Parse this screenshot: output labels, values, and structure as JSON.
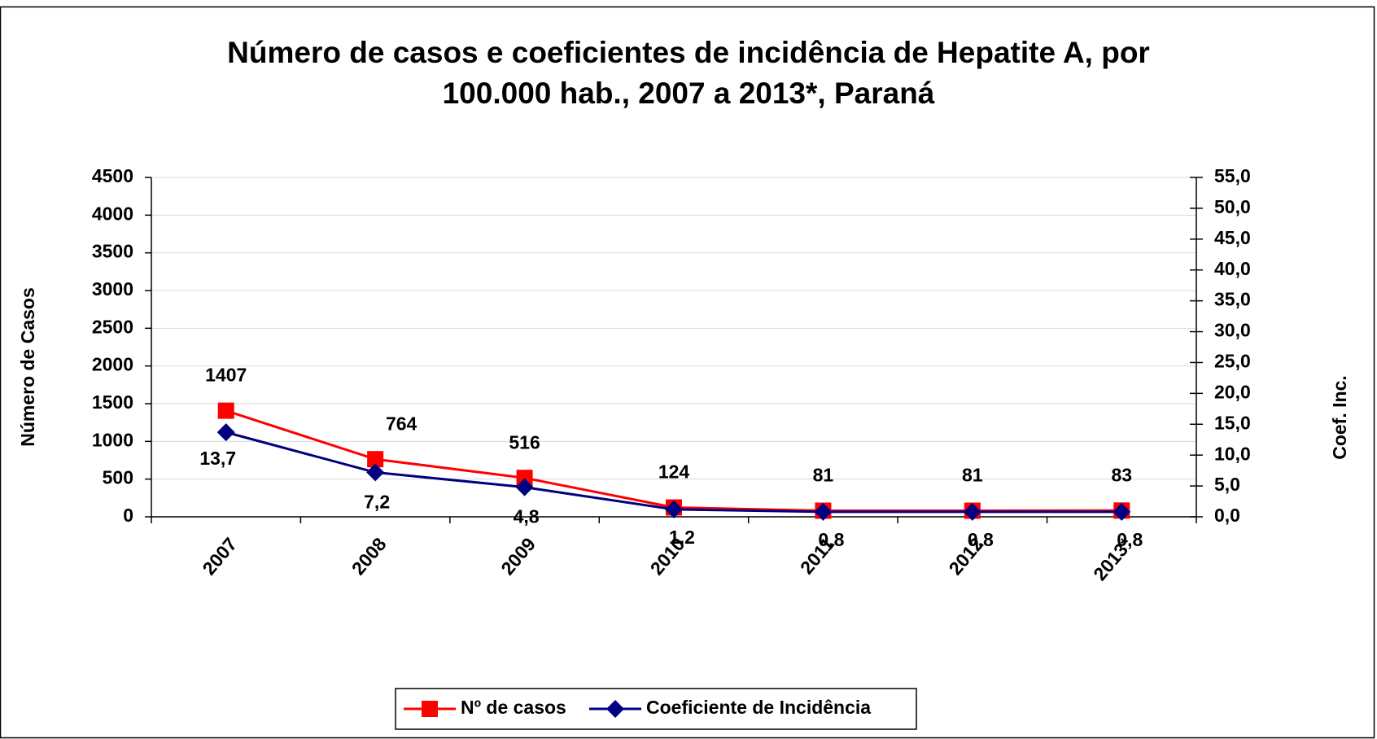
{
  "chart_data": {
    "type": "line",
    "title": "Número de casos e coeficientes de incidência de Hepatite A, por",
    "subtitle": "100.000 hab., 2007 a 2013*, Paraná",
    "ylabel": "Número de Casos",
    "y2label": "Coef. Inc.",
    "categories": [
      "2007",
      "2008",
      "2009",
      "2010",
      "2011",
      "2012",
      "2013*"
    ],
    "series": [
      {
        "name": "Nº de casos",
        "color": "#ff0000",
        "marker": "square",
        "values": [
          1407,
          764,
          516,
          124,
          81,
          81,
          83
        ]
      },
      {
        "name": "Coeficiente de Incidência",
        "color": "#000080",
        "marker": "diamond",
        "axis": "y2",
        "values": [
          13.7,
          7.2,
          4.8,
          1.2,
          0.8,
          0.8,
          0.8
        ],
        "value_labels": [
          "13,7",
          "7,2",
          "4,8",
          "1,2",
          "0,8",
          "0,8",
          "0,8"
        ]
      }
    ],
    "ylim": [
      0,
      4500
    ],
    "yticks": [
      0,
      500,
      1000,
      1500,
      2000,
      2500,
      3000,
      3500,
      4000,
      4500
    ],
    "y2lim": [
      0,
      55
    ],
    "y2ticks": [
      {
        "value": 0,
        "label": "0,0"
      },
      {
        "value": 5,
        "label": "5,0"
      },
      {
        "value": 10,
        "label": "10,0"
      },
      {
        "value": 15,
        "label": "15,0"
      },
      {
        "value": 20,
        "label": "20,0"
      },
      {
        "value": 25,
        "label": "25,0"
      },
      {
        "value": 30,
        "label": "30,0"
      },
      {
        "value": 35,
        "label": "35,0"
      },
      {
        "value": 40,
        "label": "40,0"
      },
      {
        "value": 45,
        "label": "45,0"
      },
      {
        "value": 50,
        "label": "50,0"
      },
      {
        "value": 55,
        "label": "55,0"
      }
    ],
    "grid": true,
    "legend": "bottom"
  }
}
